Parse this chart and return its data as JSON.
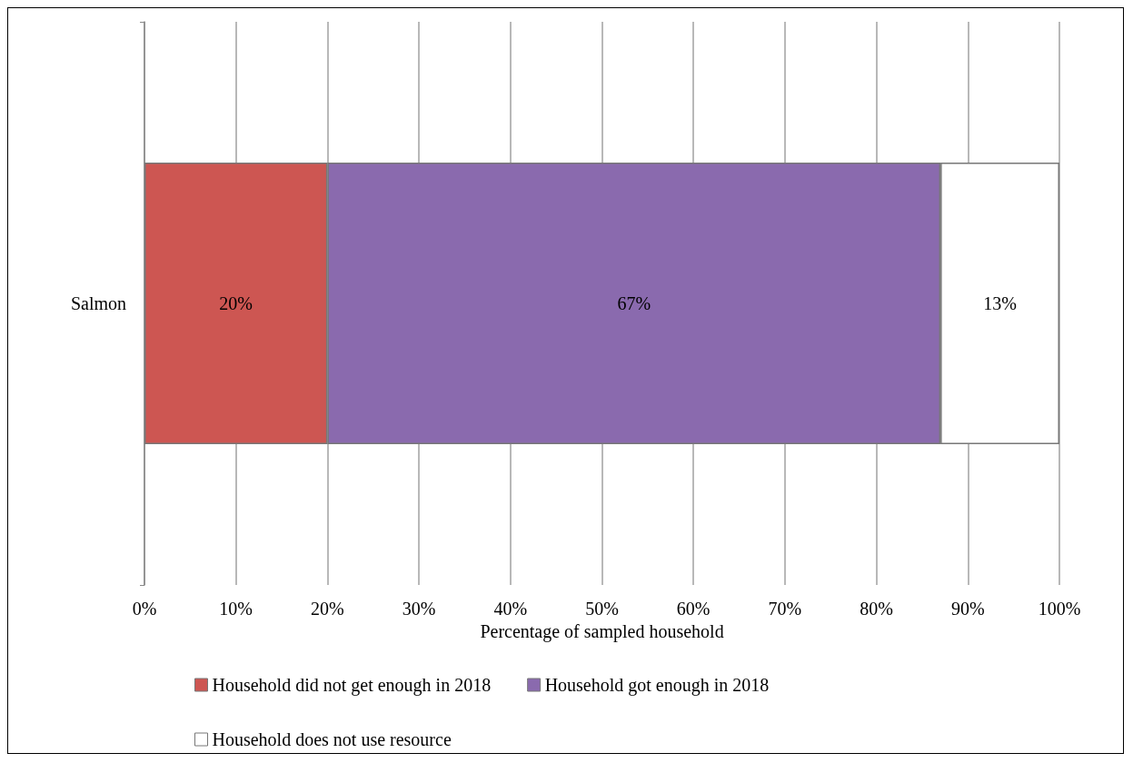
{
  "chart_data": {
    "type": "bar",
    "orientation": "horizontal",
    "stacked": true,
    "categories": [
      "Salmon"
    ],
    "xlabel": "Percentage of sampled household",
    "series": [
      {
        "name": "Household did not get enough in 2018",
        "color": "#cd5652",
        "values": [
          20
        ],
        "value_labels": [
          "20%"
        ]
      },
      {
        "name": "Household got enough in 2018",
        "color": "#8a6aae",
        "values": [
          67
        ],
        "value_labels": [
          "67%"
        ]
      },
      {
        "name": "Household does not use resource",
        "color": "#ffffff",
        "values": [
          13
        ],
        "value_labels": [
          "13%"
        ]
      }
    ],
    "xlim": [
      0,
      100
    ],
    "xticks": [
      {
        "value": 0,
        "label": "0%"
      },
      {
        "value": 10,
        "label": "10%"
      },
      {
        "value": 20,
        "label": "20%"
      },
      {
        "value": 30,
        "label": "30%"
      },
      {
        "value": 40,
        "label": "40%"
      },
      {
        "value": 50,
        "label": "50%"
      },
      {
        "value": 60,
        "label": "60%"
      },
      {
        "value": 70,
        "label": "70%"
      },
      {
        "value": 80,
        "label": "80%"
      },
      {
        "value": 90,
        "label": "90%"
      },
      {
        "value": 100,
        "label": "100%"
      }
    ],
    "grid": "x",
    "legend": "bottom"
  }
}
